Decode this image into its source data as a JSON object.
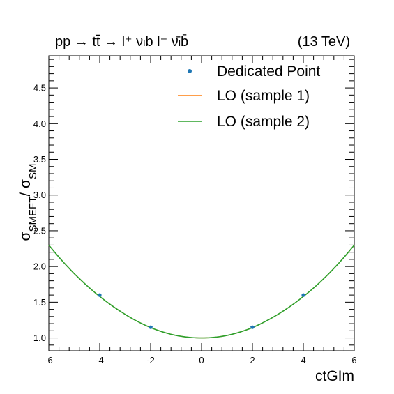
{
  "header": {
    "process": "pp → tt̄ → l⁺ νₗb  l⁻ ν̄ₗb̄",
    "energy": "(13 TeV)"
  },
  "chart_data": {
    "type": "scatter",
    "xlabel": "ctGIm",
    "ylabel": "σSMEFT/ σSM",
    "xlim": [
      -6,
      6
    ],
    "ylim": [
      0.82,
      4.95
    ],
    "x_ticks": [
      "-6",
      "-4",
      "-2",
      "0",
      "2",
      "4",
      "6"
    ],
    "y_ticks": [
      "1.0",
      "1.5",
      "2.0",
      "2.5",
      "3.0",
      "3.5",
      "4.0",
      "4.5"
    ],
    "grid": false,
    "legend_position": "top-right",
    "series": [
      {
        "name": "Dedicated Point",
        "kind": "points",
        "color": "#1f77b4",
        "x": [
          -4,
          -2,
          2,
          4
        ],
        "y": [
          1.6,
          1.15,
          1.15,
          1.6
        ],
        "yerr": [
          0.015,
          0.01,
          0.01,
          0.015
        ]
      },
      {
        "name": "LO (sample 1)",
        "kind": "line",
        "color": "#ff7f0e",
        "x": [
          -6,
          -5,
          -4,
          -3,
          -2,
          -1,
          0,
          1,
          2,
          3,
          4,
          5,
          6
        ],
        "y": [
          2.3,
          1.9,
          1.58,
          1.33,
          1.145,
          1.035,
          1.0,
          1.035,
          1.145,
          1.33,
          1.58,
          1.9,
          2.3
        ]
      },
      {
        "name": "LO (sample 2)",
        "kind": "line",
        "color": "#2ca02c",
        "x": [
          -6,
          -5,
          -4,
          -3,
          -2,
          -1,
          0,
          1,
          2,
          3,
          4,
          5,
          6
        ],
        "y": [
          2.3,
          1.9,
          1.58,
          1.33,
          1.145,
          1.035,
          1.0,
          1.035,
          1.145,
          1.33,
          1.58,
          1.9,
          2.3
        ]
      }
    ]
  }
}
